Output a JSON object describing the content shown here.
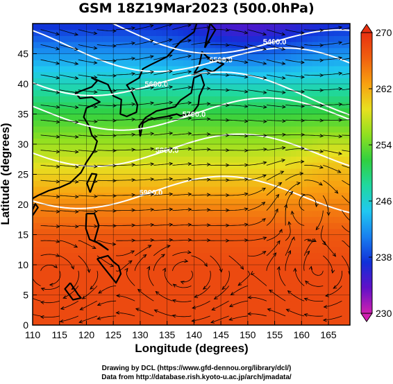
{
  "title": "GSM 18Z19Mar2023 (500.0hPa)",
  "xlabel": "Longitude (degrees)",
  "ylabel": "Latitude  (degrees)",
  "x_ticks": [
    "110",
    "115",
    "120",
    "125",
    "130",
    "135",
    "140",
    "145",
    "150",
    "155",
    "160",
    "165"
  ],
  "y_ticks": [
    "0",
    "5",
    "10",
    "15",
    "20",
    "25",
    "30",
    "35",
    "40",
    "45"
  ],
  "colorbar": {
    "min": 230,
    "max": 270,
    "labels": [
      "230",
      "238",
      "246",
      "254",
      "262",
      "270"
    ],
    "colors": [
      "#d020b0",
      "#6010c8",
      "#1030d8",
      "#1880f0",
      "#20c8f0",
      "#20d8a0",
      "#30d040",
      "#90e020",
      "#e8e020",
      "#f8a010",
      "#f06010",
      "#e83010"
    ]
  },
  "contour_labels": [
    "5400.0",
    "5600.0",
    "5800.0",
    "5500.0",
    "5700.0",
    "5900.0"
  ],
  "credits": {
    "line1": "Drawing by DCL (https://www.gfd-dennou.org/library/dcl/)",
    "line2": "Data from http://database.rish.kyoto-u.ac.jp/arch/jmadata/"
  },
  "chart_data": {
    "type": "heatmap",
    "title": "GSM 18Z19Mar2023 (500.0hPa)",
    "xlabel": "Longitude (degrees)",
    "ylabel": "Latitude  (degrees)",
    "xlim": [
      110,
      169
    ],
    "ylim": [
      0,
      50
    ],
    "variable_range": [
      230,
      270
    ],
    "geopotential_contours": [
      {
        "label": "5400.0",
        "lon": 155,
        "lat": 47
      },
      {
        "label": "5500.0",
        "lon": 145,
        "lat": 44
      },
      {
        "label": "5600.0",
        "lon": 133,
        "lat": 40
      },
      {
        "label": "5700.0",
        "lon": 140,
        "lat": 35
      },
      {
        "label": "5800.0",
        "lon": 135,
        "lat": 29
      },
      {
        "label": "5900.0",
        "lon": 132,
        "lat": 22
      }
    ],
    "temperature_profile": [
      {
        "lat": 50,
        "value": 237
      },
      {
        "lat": 45,
        "value": 242
      },
      {
        "lat": 40,
        "value": 247
      },
      {
        "lat": 35,
        "value": 252
      },
      {
        "lat": 30,
        "value": 256
      },
      {
        "lat": 25,
        "value": 260
      },
      {
        "lat": 20,
        "value": 264
      },
      {
        "lat": 15,
        "value": 267
      },
      {
        "lat": 10,
        "value": 268
      },
      {
        "lat": 5,
        "value": 268
      },
      {
        "lat": 0,
        "value": 268
      }
    ]
  }
}
